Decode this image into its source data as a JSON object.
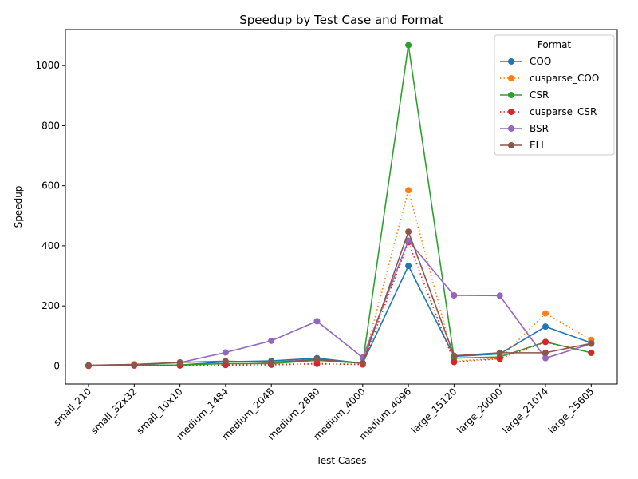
{
  "chart_data": {
    "type": "line",
    "title": "Speedup by Test Case and Format",
    "xlabel": "Test Cases",
    "ylabel": "Speedup",
    "categories": [
      "small_210",
      "small_32x32",
      "small_10x10",
      "medium_1484",
      "medium_2048",
      "medium_2880",
      "medium_4000",
      "medium_4096",
      "large_15120",
      "large_20000",
      "large_21074",
      "large_25605"
    ],
    "ylim": [
      -60,
      1120
    ],
    "yticks": [
      0,
      200,
      400,
      600,
      800,
      1000
    ],
    "legend": {
      "title": "Format",
      "placement": "top-right"
    },
    "series": [
      {
        "name": "COO",
        "color": "#1f77b4",
        "style": "solid",
        "values": [
          1,
          3,
          3,
          14,
          17,
          26,
          9,
          333,
          32,
          40,
          131,
          77
        ]
      },
      {
        "name": "cusparse_COO",
        "color": "#ff7f0e",
        "style": "dotted",
        "values": [
          0.5,
          2,
          2,
          4,
          5,
          8,
          5,
          585,
          16,
          25,
          175,
          87
        ]
      },
      {
        "name": "CSR",
        "color": "#2ca02c",
        "style": "solid",
        "values": [
          1,
          3,
          3,
          8,
          8,
          19,
          9,
          1068,
          26,
          30,
          80,
          44
        ]
      },
      {
        "name": "cusparse_CSR",
        "color": "#d62728",
        "style": "dotted",
        "values": [
          0.5,
          1.5,
          1.5,
          3,
          4,
          7,
          5,
          412,
          13,
          24,
          80,
          44
        ]
      },
      {
        "name": "BSR",
        "color": "#9467bd",
        "style": "solid",
        "values": [
          2,
          5,
          11,
          45,
          84,
          149,
          28,
          417,
          235,
          234,
          26,
          74
        ]
      },
      {
        "name": "ELL",
        "color": "#8c564b",
        "style": "solid",
        "values": [
          2,
          5,
          12,
          16,
          12,
          22,
          10,
          447,
          34,
          44,
          44,
          75
        ]
      }
    ]
  }
}
